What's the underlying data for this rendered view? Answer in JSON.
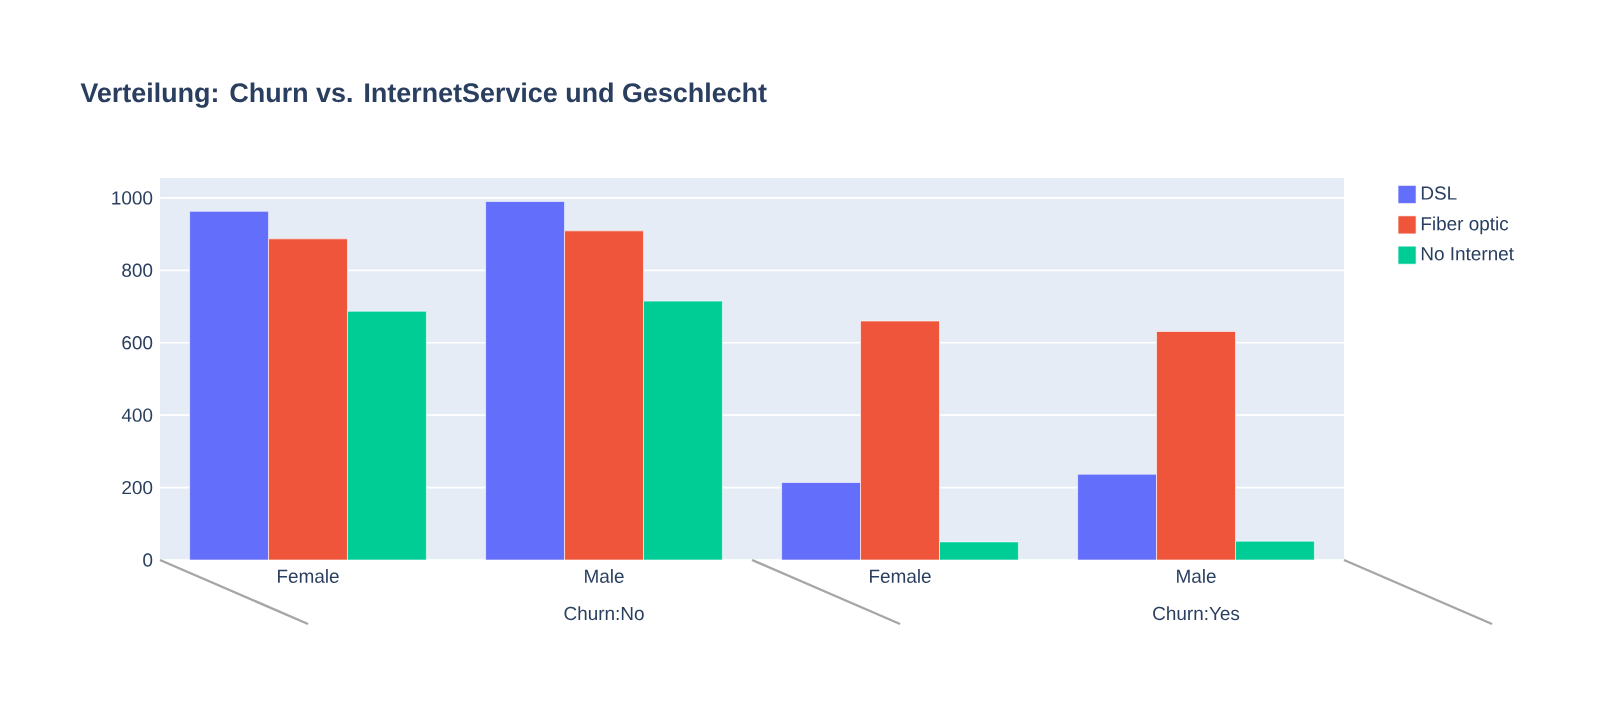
{
  "chart_data": {
    "type": "bar",
    "title": "Verteilung: Churn vs. InternetService und Geschlecht",
    "categories": [
      "Female",
      "Male",
      "Female",
      "Male"
    ],
    "annotations": [
      "Churn:No",
      "Churn:Yes"
    ],
    "series": [
      {
        "name": "DSL",
        "color": "#636efa",
        "values": [
          963,
          990,
          214,
          237
        ]
      },
      {
        "name": "Fiber optic",
        "color": "#ef553b",
        "values": [
          887,
          909,
          660,
          631
        ]
      },
      {
        "name": "No Internet",
        "color": "#00cc96",
        "values": [
          687,
          715,
          50,
          52
        ]
      }
    ],
    "ylim": [
      0,
      1055
    ],
    "yticks": [
      0,
      200,
      400,
      600,
      800,
      1000
    ],
    "grid": "y",
    "legend": "top right"
  }
}
